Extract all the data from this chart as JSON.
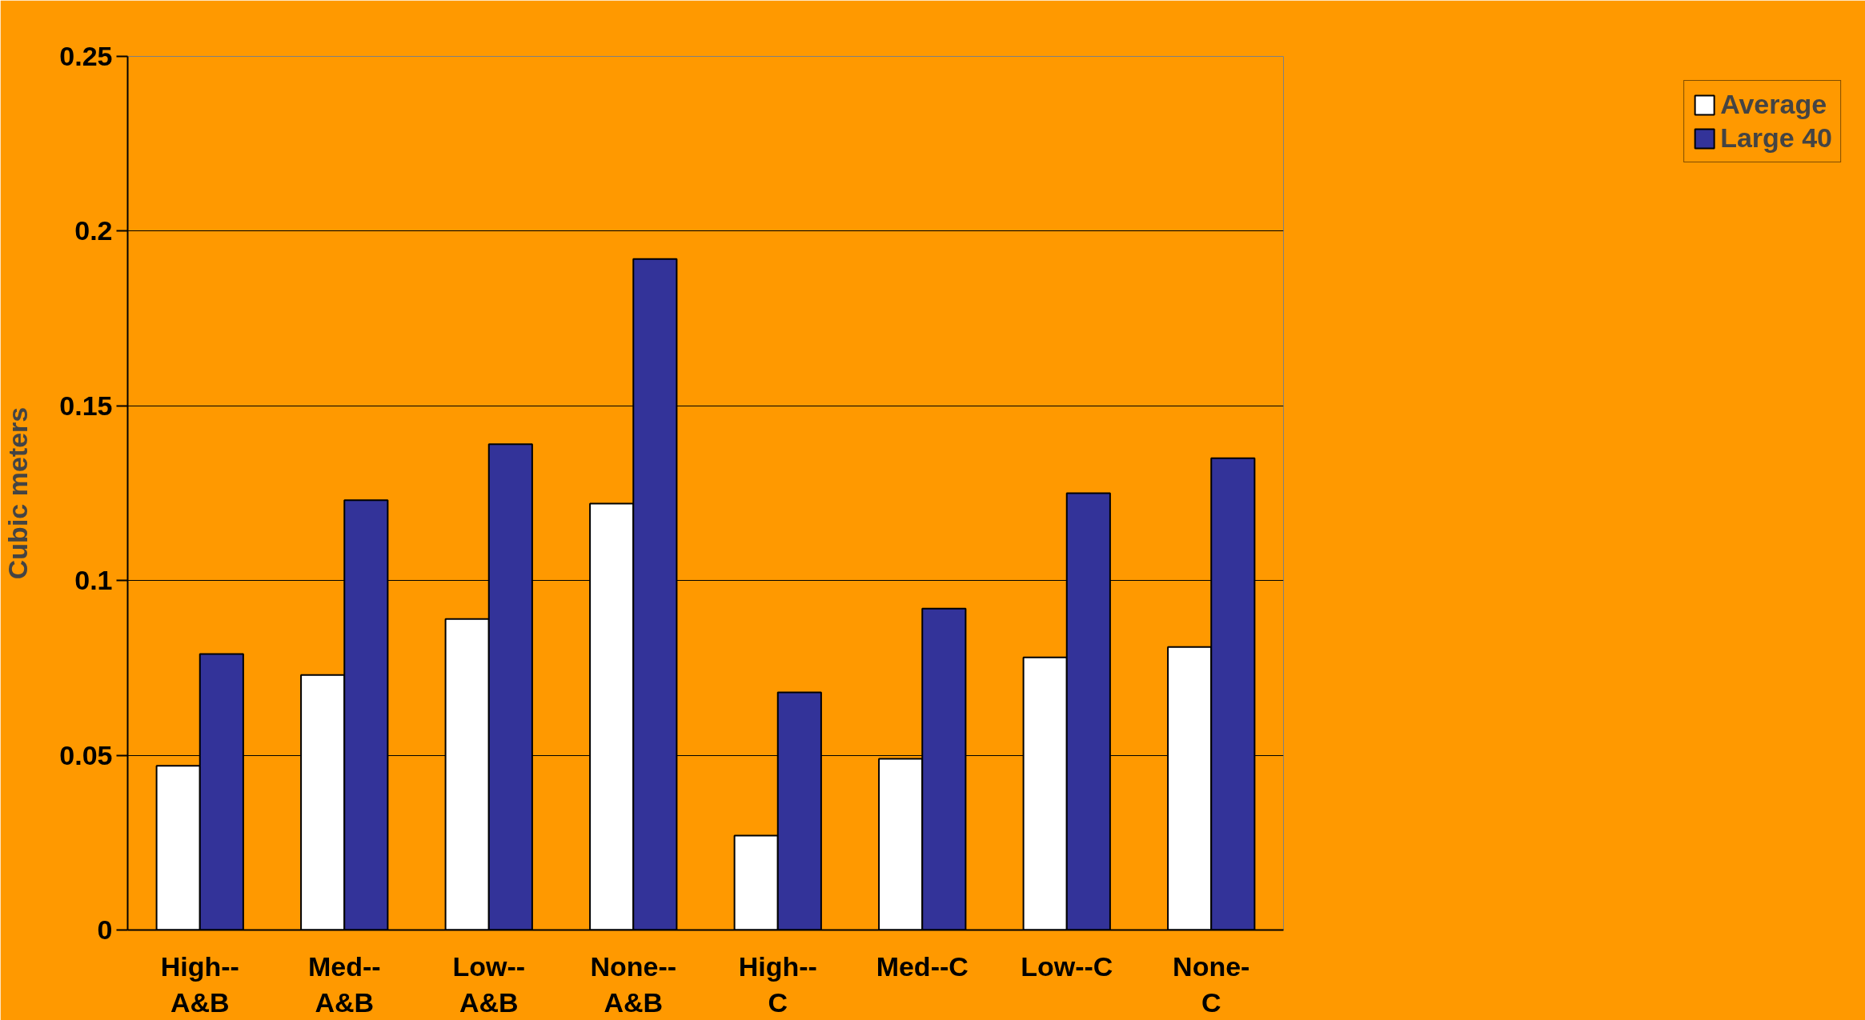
{
  "chart_data": {
    "type": "bar",
    "ylabel": "Cubic meters",
    "categories": [
      "High--\nA&B",
      "Med--\nA&B",
      "Low--\nA&B",
      "None--\nA&B",
      "High--\nC",
      "Med--C",
      "Low--C",
      "None-\nC"
    ],
    "series": [
      {
        "name": "Average",
        "color": "#ffffff",
        "values": [
          0.047,
          0.073,
          0.089,
          0.122,
          0.027,
          0.049,
          0.078,
          0.081
        ]
      },
      {
        "name": "Large 40",
        "color": "#333399",
        "values": [
          0.079,
          0.123,
          0.139,
          0.192,
          0.068,
          0.092,
          0.125,
          0.135
        ]
      }
    ],
    "ylim": [
      0,
      0.25
    ],
    "yticks": [
      0,
      0.05,
      0.1,
      0.15,
      0.2,
      0.25
    ],
    "grid": "y",
    "legend": "right"
  }
}
